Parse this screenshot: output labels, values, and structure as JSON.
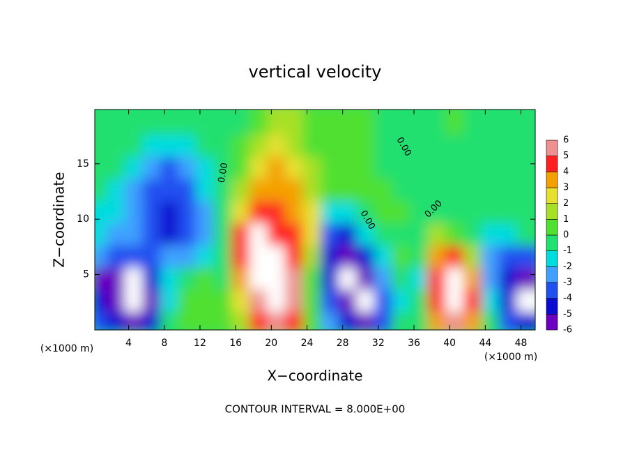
{
  "chart_data": {
    "type": "heatmap",
    "title": "vertical velocity",
    "xlabel": "X−coordinate",
    "ylabel": "Z−coordinate",
    "x_unit": "(×1000 m)",
    "y_unit": "(×1000 m)",
    "footer": "CONTOUR INTERVAL = 8.000E+00",
    "contour_labels": [
      "0.00",
      "0.00",
      "0.00",
      "0.00"
    ],
    "xlim": [
      0.2,
      49.6
    ],
    "ylim": [
      0,
      19.9
    ],
    "xticks": [
      4,
      8,
      12,
      16,
      20,
      24,
      28,
      32,
      36,
      40,
      44,
      48
    ],
    "yticks": [
      5,
      10,
      15
    ],
    "x": [
      1,
      3,
      5,
      7,
      9,
      11,
      13,
      15,
      17,
      19,
      21,
      23,
      25,
      27,
      29,
      31,
      33,
      35,
      37,
      39,
      41,
      43,
      45,
      47,
      49
    ],
    "z": [
      1,
      3,
      5,
      7,
      9,
      11,
      13,
      15,
      17,
      19
    ],
    "values": [
      [
        -3,
        -4,
        -5,
        -4,
        -0.5,
        1,
        1,
        0.5,
        2,
        5,
        6,
        5,
        0.5,
        -2,
        -4,
        -5,
        -3,
        -0.5,
        0,
        4,
        6,
        4,
        0,
        -3,
        -4
      ],
      [
        -4,
        -5,
        -7,
        -5,
        -1,
        0.5,
        1,
        0.5,
        3,
        6,
        7.5,
        6,
        1,
        -3,
        -5,
        -6.5,
        -3,
        -1,
        -0.5,
        5,
        7,
        5,
        -1,
        -4,
        -6.5
      ],
      [
        -5,
        -6,
        -7,
        -4,
        -1,
        0,
        0.5,
        0,
        4,
        7,
        7.5,
        6,
        1,
        -4,
        -6.5,
        -6,
        -2,
        -0.5,
        -1,
        5,
        7,
        4,
        -2,
        -4,
        -5
      ],
      [
        -2.5,
        -3,
        -3.5,
        -3,
        -2.5,
        -2,
        -1,
        0,
        5,
        7,
        7,
        5,
        2,
        -4,
        -6,
        -4,
        -1,
        0.5,
        0,
        4,
        5,
        2,
        -2,
        -3,
        -3
      ],
      [
        -1.5,
        -2,
        -2.5,
        -3.5,
        -4,
        -3,
        -2,
        -0.5,
        4.5,
        7,
        5,
        4.5,
        3,
        -3,
        -4,
        -1.5,
        0,
        0,
        -0.5,
        2,
        1,
        0,
        -1,
        -1,
        -0.5
      ],
      [
        -1,
        -1.5,
        -2.5,
        -3.5,
        -4,
        -3.5,
        -2,
        0,
        3,
        5,
        4.5,
        4,
        2.5,
        -1,
        -1.5,
        0,
        0.5,
        0.5,
        -0.5,
        0,
        0,
        0,
        0,
        0,
        0
      ],
      [
        -0.5,
        -1,
        -2,
        -3,
        -3.5,
        -3,
        -1.5,
        0,
        2,
        4,
        4,
        3.5,
        2,
        0.5,
        1,
        1,
        0.5,
        0,
        0,
        0,
        0,
        0,
        0,
        0,
        0
      ],
      [
        0,
        -0.5,
        -1.5,
        -2,
        -3,
        -2.5,
        -1,
        0,
        1,
        3,
        3.5,
        3,
        1.5,
        0.5,
        0.5,
        0.5,
        0,
        0,
        0,
        0,
        0,
        0,
        0,
        -0.5,
        0
      ],
      [
        0,
        0,
        -0.5,
        -1,
        -1.5,
        -1,
        -0.5,
        0,
        0.5,
        2,
        2.5,
        2,
        1,
        0.5,
        0.5,
        0.5,
        0,
        -0.5,
        0,
        0,
        0,
        0,
        0,
        0,
        0
      ],
      [
        0,
        0,
        0,
        0,
        -0.5,
        -0.5,
        0,
        0,
        0,
        0.5,
        1.5,
        1.5,
        1,
        0.5,
        0.5,
        0.5,
        0,
        0,
        0,
        0,
        0.5,
        0,
        0,
        0,
        0
      ]
    ],
    "levels": [
      -6,
      -5,
      -4,
      -3,
      -2,
      -1,
      0,
      1,
      2,
      3,
      4,
      5,
      6
    ],
    "colors": [
      "#6a00c0",
      "#0a0ad0",
      "#2050f0",
      "#40a0ff",
      "#00dce0",
      "#20e070",
      "#50e030",
      "#a8e028",
      "#e8e030",
      "#f4a000",
      "#ff2020",
      "#f09090"
    ],
    "out_of_range_color": "#ffffff"
  }
}
